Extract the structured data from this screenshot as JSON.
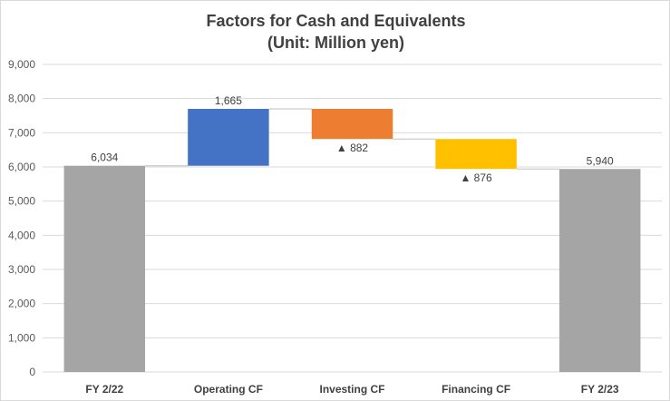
{
  "chart_data": {
    "type": "waterfall",
    "title": "Factors for Cash and Equivalents",
    "subtitle": "(Unit: Million yen)",
    "categories": [
      "FY 2/22",
      "Operating CF",
      "Investing CF",
      "Financing CF",
      "FY 2/23"
    ],
    "bars": [
      {
        "category": "FY 2/22",
        "kind": "total",
        "start": 0,
        "end": 6034,
        "label": "6,034",
        "color": "#a5a5a5"
      },
      {
        "category": "Operating CF",
        "kind": "increase",
        "start": 6034,
        "end": 7699,
        "label": "1,665",
        "color": "#4472c4"
      },
      {
        "category": "Investing CF",
        "kind": "decrease",
        "start": 7699,
        "end": 6817,
        "label": "▲ 882",
        "color": "#ed7d31"
      },
      {
        "category": "Financing CF",
        "kind": "decrease",
        "start": 6817,
        "end": 5941,
        "label": "▲ 876",
        "color": "#ffc000"
      },
      {
        "category": "FY 2/23",
        "kind": "total",
        "start": 0,
        "end": 5940,
        "label": "5,940",
        "color": "#a5a5a5"
      }
    ],
    "ylim": [
      0,
      9000
    ],
    "yticks": [
      0,
      1000,
      2000,
      3000,
      4000,
      5000,
      6000,
      7000,
      8000,
      9000
    ],
    "ytick_labels": [
      "0",
      "1,000",
      "2,000",
      "3,000",
      "4,000",
      "5,000",
      "6,000",
      "7,000",
      "8,000",
      "9,000"
    ],
    "grid": true,
    "gridline_color": "#d9d9d9",
    "connector_color": "#bfbfbf",
    "legend": "none"
  }
}
